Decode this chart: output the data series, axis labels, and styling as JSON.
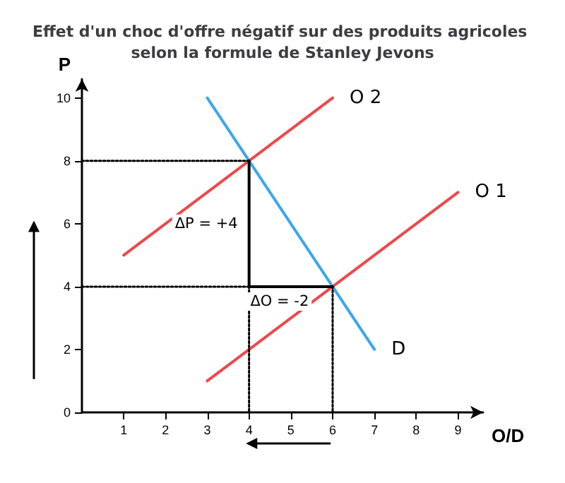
{
  "chart_data": {
    "type": "line",
    "title": "Effet d'un choc d'offre négatif sur des produits agricoles selon la formule de Stanley Jevons",
    "xlabel": "O/D",
    "ylabel": "P",
    "xlim": [
      0,
      9.6
    ],
    "ylim": [
      0,
      10.6
    ],
    "xticks": [
      1,
      2,
      3,
      4,
      5,
      6,
      7,
      8,
      9
    ],
    "yticks": [
      0,
      2,
      4,
      6,
      8,
      10
    ],
    "grid": false,
    "legend": false,
    "marker": "none",
    "series": [
      {
        "name": "O 2",
        "color": "#f0474a",
        "x": [
          1,
          6
        ],
        "values": [
          5,
          10
        ],
        "line_style": "solid"
      },
      {
        "name": "O 1",
        "color": "#f0474a",
        "x": [
          3,
          9
        ],
        "values": [
          1,
          7
        ],
        "line_style": "solid"
      },
      {
        "name": "D",
        "color": "#3ba7ea",
        "x": [
          3,
          7
        ],
        "values": [
          10,
          2
        ],
        "line_style": "solid"
      },
      {
        "color": "#000000",
        "x": [
          0,
          4,
          4
        ],
        "values": [
          8,
          8,
          0
        ],
        "line_style": "dotted"
      },
      {
        "color": "#000000",
        "x": [
          0,
          6,
          6
        ],
        "values": [
          4,
          4,
          0
        ],
        "line_style": "dotted"
      },
      {
        "color": "#000000",
        "x": [
          4,
          4,
          6
        ],
        "values": [
          8,
          4,
          4
        ],
        "line_style": "solid"
      }
    ],
    "annotations": [
      {
        "text": "ΔP = +4",
        "x": 4,
        "y": 6
      },
      {
        "text": "ΔO = -2",
        "x": 5,
        "y": 4
      }
    ]
  }
}
